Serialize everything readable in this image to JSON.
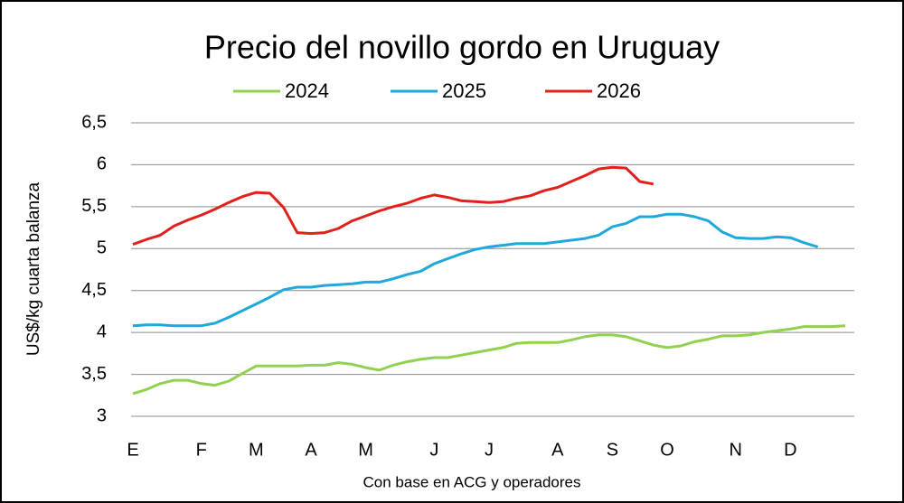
{
  "chart_data": {
    "type": "line",
    "title": "Precio del novillo gordo en Uruguay",
    "y_label": "US$/kg cuarta balanza",
    "x_label": "Con base en ACG y operadores",
    "categories": [
      "E",
      null,
      null,
      null,
      null,
      "F",
      null,
      null,
      null,
      "M",
      null,
      null,
      null,
      "A",
      null,
      null,
      null,
      "M",
      null,
      null,
      null,
      null,
      "J",
      null,
      null,
      null,
      "J",
      null,
      null,
      null,
      null,
      "A",
      null,
      null,
      null,
      "S",
      null,
      null,
      null,
      "O",
      null,
      null,
      null,
      null,
      "N",
      null,
      null,
      null,
      "D",
      null,
      null,
      null,
      null
    ],
    "series": [
      {
        "name": "2024",
        "color": "#92d050",
        "values": [
          3.27,
          3.32,
          3.39,
          3.43,
          3.43,
          3.39,
          3.37,
          3.42,
          3.51,
          3.6,
          3.6,
          3.6,
          3.6,
          3.61,
          3.61,
          3.64,
          3.62,
          3.58,
          3.55,
          3.61,
          3.65,
          3.68,
          3.7,
          3.7,
          3.73,
          3.76,
          3.79,
          3.82,
          3.87,
          3.88,
          3.88,
          3.88,
          3.91,
          3.95,
          3.97,
          3.97,
          3.95,
          3.9,
          3.85,
          3.82,
          3.84,
          3.89,
          3.92,
          3.96,
          3.96,
          3.97,
          4.0,
          4.02,
          4.04,
          4.07,
          4.07,
          4.07,
          4.08
        ]
      },
      {
        "name": "2025",
        "color": "#1ea8dc",
        "values": [
          4.08,
          4.09,
          4.09,
          4.08,
          4.08,
          4.08,
          4.11,
          4.18,
          4.26,
          4.34,
          4.42,
          4.51,
          4.54,
          4.54,
          4.56,
          4.57,
          4.58,
          4.6,
          4.6,
          4.64,
          4.69,
          4.73,
          4.82,
          4.88,
          4.94,
          4.99,
          5.02,
          5.04,
          5.06,
          5.06,
          5.06,
          5.08,
          5.1,
          5.12,
          5.16,
          5.26,
          5.3,
          5.38,
          5.38,
          5.41,
          5.41,
          5.38,
          5.33,
          5.2,
          5.13,
          5.12,
          5.12,
          5.14,
          5.13,
          5.07,
          5.02,
          null,
          null
        ]
      },
      {
        "name": "2026",
        "color": "#e0201b",
        "values": [
          5.05,
          5.11,
          5.16,
          5.27,
          5.34,
          5.4,
          5.47,
          5.55,
          5.62,
          5.67,
          5.66,
          5.49,
          5.19,
          5.18,
          5.19,
          5.24,
          5.33,
          5.39,
          5.45,
          5.5,
          5.54,
          5.6,
          5.64,
          5.61,
          5.57,
          5.56,
          5.55,
          5.56,
          5.6,
          5.63,
          5.69,
          5.73,
          5.8,
          5.87,
          5.95,
          5.97,
          5.96,
          5.8,
          5.77,
          null,
          null,
          null,
          null,
          null,
          null,
          null,
          null,
          null,
          null,
          null,
          null,
          null,
          null
        ]
      }
    ],
    "ylim": [
      3,
      6.5
    ],
    "yticks": [
      3,
      {
        "value": 3.5,
        "label": "3,5"
      },
      4,
      {
        "value": 4.5,
        "label": "4,5"
      },
      5,
      {
        "value": 5.5,
        "label": "5,5"
      },
      6,
      {
        "value": 6.5,
        "label": "6,5"
      }
    ],
    "grid": true
  }
}
